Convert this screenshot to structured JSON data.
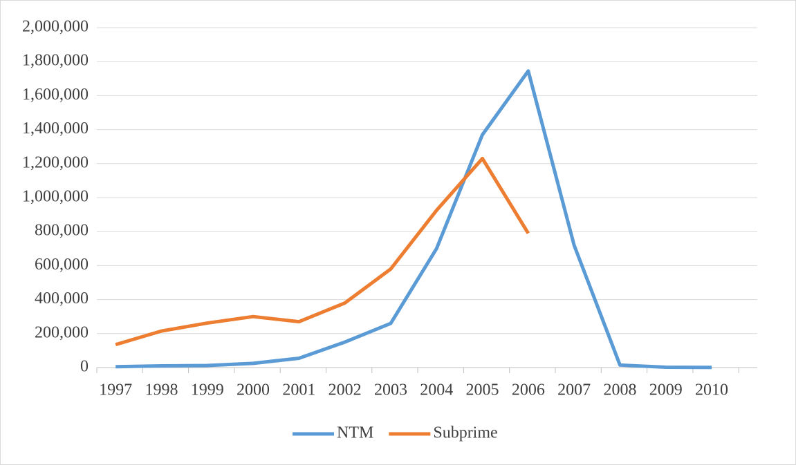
{
  "chart_data": {
    "type": "line",
    "categories": [
      "1997",
      "1998",
      "1999",
      "2000",
      "2001",
      "2002",
      "2003",
      "2004",
      "2005",
      "2006",
      "2007",
      "2008",
      "2009",
      "2010"
    ],
    "series": [
      {
        "name": "NTM",
        "color": "#5b9bd5",
        "values": [
          5000,
          10000,
          12000,
          25000,
          55000,
          150000,
          260000,
          700000,
          1370000,
          1745000,
          720000,
          15000,
          2000,
          1000
        ]
      },
      {
        "name": "Subprime",
        "color": "#ed7d31",
        "values": [
          135000,
          215000,
          262000,
          300000,
          270000,
          380000,
          580000,
          925000,
          1230000,
          790000,
          null,
          null,
          null,
          null
        ]
      }
    ],
    "ylim": [
      0,
      2000000
    ],
    "yticks": [
      0,
      {
        "value": 200000,
        "label": "200,000"
      },
      {
        "value": 400000,
        "label": "400,000"
      },
      {
        "value": 600000,
        "label": "600,000"
      },
      {
        "value": 800000,
        "label": "800,000"
      },
      {
        "value": 1000000,
        "label": "1,000,000"
      },
      {
        "value": 1200000,
        "label": "1,200,000"
      },
      {
        "value": 1400000,
        "label": "1,400,000"
      },
      {
        "value": 1600000,
        "label": "1,600,000"
      },
      {
        "value": 1800000,
        "label": "1,800,000"
      },
      {
        "value": 2000000,
        "label": "2,000,000"
      }
    ],
    "grid": true,
    "legend": "bottom"
  }
}
